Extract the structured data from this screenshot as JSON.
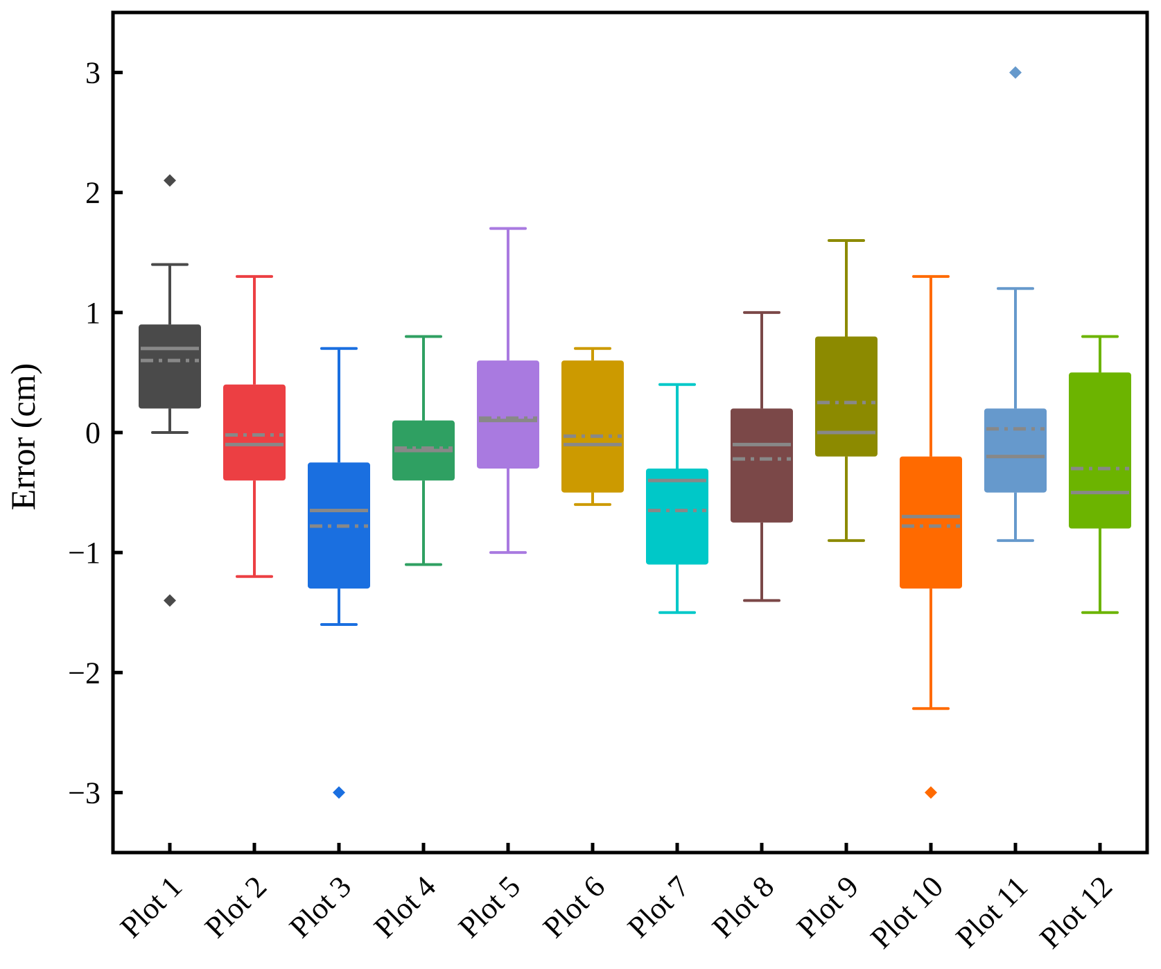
{
  "chart_data": {
    "type": "box",
    "ylabel": "Error (cm)",
    "xlabel": "",
    "ylim": [
      -3.5,
      3.5
    ],
    "yticks": [
      -3,
      -2,
      -1,
      0,
      1,
      2,
      3
    ],
    "ytick_labels": [
      "−3",
      "−2",
      "−1",
      "0",
      "1",
      "2",
      "3"
    ],
    "categories": [
      "Plot 1",
      "Plot 2",
      "Plot 3",
      "Plot 4",
      "Plot 5",
      "Plot 6",
      "Plot 7",
      "Plot 8",
      "Plot 9",
      "Plot 10",
      "Plot 11",
      "Plot 12"
    ],
    "grid": false,
    "boxes": [
      {
        "category": "Plot 1",
        "color": "#4a4a4a",
        "whisker_low": 0.0,
        "q1": 0.2,
        "median": 0.7,
        "mean": 0.6,
        "q3": 0.9,
        "whisker_high": 1.4,
        "outliers": [
          2.1,
          -1.4
        ]
      },
      {
        "category": "Plot 2",
        "color": "#ec3f43",
        "whisker_low": -1.2,
        "q1": -0.4,
        "median": -0.1,
        "mean": -0.02,
        "q3": 0.4,
        "whisker_high": 1.3,
        "outliers": []
      },
      {
        "category": "Plot 3",
        "color": "#1a6fe0",
        "whisker_low": -1.6,
        "q1": -1.3,
        "median": -0.65,
        "mean": -0.78,
        "q3": -0.25,
        "whisker_high": 0.7,
        "outliers": [
          -3.0
        ]
      },
      {
        "category": "Plot 4",
        "color": "#2fa062",
        "whisker_low": -1.1,
        "q1": -0.4,
        "median": -0.15,
        "mean": -0.13,
        "q3": 0.1,
        "whisker_high": 0.8,
        "outliers": []
      },
      {
        "category": "Plot 5",
        "color": "#a97ae0",
        "whisker_low": -1.0,
        "q1": -0.3,
        "median": 0.1,
        "mean": 0.12,
        "q3": 0.6,
        "whisker_high": 1.7,
        "outliers": []
      },
      {
        "category": "Plot 6",
        "color": "#cc9a00",
        "whisker_low": -0.6,
        "q1": -0.5,
        "median": -0.1,
        "mean": -0.03,
        "q3": 0.6,
        "whisker_high": 0.7,
        "outliers": []
      },
      {
        "category": "Plot 7",
        "color": "#00c8c8",
        "whisker_low": -1.5,
        "q1": -1.1,
        "median": -0.4,
        "mean": -0.65,
        "q3": -0.3,
        "whisker_high": 0.4,
        "outliers": []
      },
      {
        "category": "Plot 8",
        "color": "#7b4848",
        "whisker_low": -1.4,
        "q1": -0.75,
        "median": -0.1,
        "mean": -0.22,
        "q3": 0.2,
        "whisker_high": 1.0,
        "outliers": []
      },
      {
        "category": "Plot 9",
        "color": "#8c8a00",
        "whisker_low": -0.9,
        "q1": -0.2,
        "median": 0.0,
        "mean": 0.25,
        "q3": 0.8,
        "whisker_high": 1.6,
        "outliers": []
      },
      {
        "category": "Plot 10",
        "color": "#ff6a00",
        "whisker_low": -2.3,
        "q1": -1.3,
        "median": -0.7,
        "mean": -0.78,
        "q3": -0.2,
        "whisker_high": 1.3,
        "outliers": [
          -3.0
        ]
      },
      {
        "category": "Plot 11",
        "color": "#6699cc",
        "whisker_low": -0.9,
        "q1": -0.5,
        "median": -0.2,
        "mean": 0.03,
        "q3": 0.2,
        "whisker_high": 1.2,
        "outliers": [
          3.0
        ]
      },
      {
        "category": "Plot 12",
        "color": "#6cb400",
        "whisker_low": -1.5,
        "q1": -0.8,
        "median": -0.5,
        "mean": -0.3,
        "q3": 0.5,
        "whisker_high": 0.8,
        "outliers": []
      }
    ],
    "median_line_style": "solid",
    "mean_line_style": "dash-dot",
    "center_line_color": "#888888"
  }
}
